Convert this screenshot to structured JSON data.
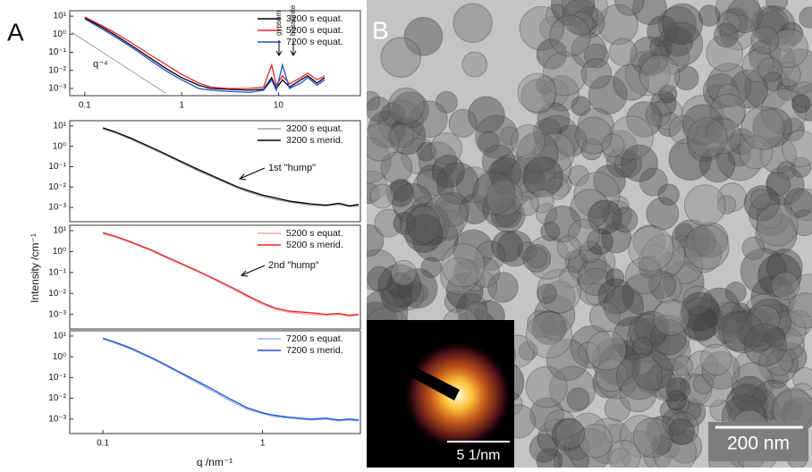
{
  "panel_labels": [
    "A",
    "B"
  ],
  "y_axis_label": "Intensity /cm⁻¹",
  "x_axis_label": "q /nm⁻¹",
  "image": {
    "scale_bar": "200 nm",
    "inset_scale_bar": "5 1/nm"
  },
  "chart_data": [
    {
      "type": "line",
      "log_x": true,
      "log_y": true,
      "x": [
        0.1,
        0.15,
        0.2,
        0.3,
        0.5,
        0.7,
        1,
        1.5,
        2,
        3,
        5,
        7,
        8.5,
        9.5,
        11,
        13,
        17,
        20,
        25,
        30
      ],
      "series": [
        {
          "name": "3200 s equat.",
          "color": "#000000",
          "values": [
            8,
            2.5,
            1,
            0.25,
            0.04,
            0.012,
            0.004,
            0.0015,
            0.001,
            0.0009,
            0.0008,
            0.0009,
            0.004,
            0.001,
            0.003,
            0.0012,
            0.003,
            0.005,
            0.002,
            0.004
          ]
        },
        {
          "name": "5200 s equat.",
          "color": "#e3262b",
          "values": [
            9,
            3,
            1.3,
            0.35,
            0.06,
            0.02,
            0.006,
            0.002,
            0.0012,
            0.001,
            0.001,
            0.0012,
            0.02,
            0.0015,
            0.005,
            0.0018,
            0.004,
            0.007,
            0.003,
            0.005
          ]
        },
        {
          "name": "7200 s equat.",
          "color": "#1f4fd6",
          "values": [
            7,
            2,
            0.8,
            0.2,
            0.03,
            0.009,
            0.003,
            0.001,
            0.0008,
            0.0007,
            0.0006,
            0.0008,
            0.003,
            0.0008,
            0.02,
            0.001,
            0.002,
            0.004,
            0.0015,
            0.003
          ]
        }
      ],
      "annotations": [
        "q⁻⁴",
        "gypsum",
        "bassanite"
      ],
      "xlim": [
        0.07,
        70
      ],
      "ylim": [
        0.0004,
        20
      ],
      "xticks": [
        0.1,
        1,
        10
      ],
      "yticks": [
        {
          "value": 10,
          "label": "10¹"
        },
        {
          "value": 1,
          "label": "10⁰"
        },
        {
          "value": 0.1,
          "label": "10⁻¹"
        },
        {
          "value": 0.01,
          "label": "10⁻²"
        },
        {
          "value": 0.001,
          "label": "10⁻³"
        }
      ]
    },
    {
      "type": "line",
      "log_x": true,
      "log_y": true,
      "x": [
        0.1,
        0.12,
        0.15,
        0.2,
        0.25,
        0.3,
        0.4,
        0.5,
        0.6,
        0.7,
        0.8,
        1,
        1.2,
        1.5,
        2,
        2.5,
        3,
        3.5,
        4
      ],
      "series": [
        {
          "name": "3200 s equat.",
          "color": "#9a9a9a",
          "values": [
            7,
            4.5,
            2.2,
            0.8,
            0.35,
            0.18,
            0.06,
            0.028,
            0.015,
            0.009,
            0.006,
            0.0035,
            0.0025,
            0.0018,
            0.0013,
            0.0012,
            0.0014,
            0.0011,
            0.0012
          ]
        },
        {
          "name": "3200 s merid.",
          "color": "#000000",
          "values": [
            8,
            5,
            2.5,
            0.9,
            0.4,
            0.2,
            0.07,
            0.032,
            0.017,
            0.01,
            0.007,
            0.004,
            0.003,
            0.002,
            0.0015,
            0.0013,
            0.0016,
            0.0012,
            0.0014
          ]
        }
      ],
      "annotations": [
        "1st \"hump\""
      ],
      "xlim": [
        0.062,
        4.1
      ],
      "ylim": [
        0.0002,
        18
      ],
      "yticks": [
        {
          "value": 10,
          "label": "10¹"
        },
        {
          "value": 1,
          "label": "10⁰"
        },
        {
          "value": 0.1,
          "label": "10⁻¹"
        },
        {
          "value": 0.01,
          "label": "10⁻²"
        },
        {
          "value": 0.001,
          "label": "10⁻³"
        }
      ]
    },
    {
      "type": "line",
      "log_x": true,
      "log_y": true,
      "x": [
        0.1,
        0.12,
        0.15,
        0.2,
        0.25,
        0.3,
        0.4,
        0.5,
        0.6,
        0.7,
        0.8,
        1,
        1.2,
        1.5,
        2,
        2.5,
        3,
        3.5,
        4
      ],
      "series": [
        {
          "name": "5200 s equat.",
          "color": "#f4a3a3",
          "values": [
            7,
            4.8,
            2.6,
            1.1,
            0.5,
            0.27,
            0.1,
            0.045,
            0.022,
            0.012,
            0.007,
            0.003,
            0.0018,
            0.0012,
            0.001,
            0.0009,
            0.001,
            0.0008,
            0.0009
          ]
        },
        {
          "name": "5200 s merid.",
          "color": "#e3262b",
          "values": [
            8,
            5.3,
            2.9,
            1.2,
            0.55,
            0.3,
            0.11,
            0.05,
            0.025,
            0.014,
            0.008,
            0.0035,
            0.002,
            0.0014,
            0.0012,
            0.001,
            0.0011,
            0.0009,
            0.001
          ]
        }
      ],
      "annotations": [
        "2nd \"hump\""
      ],
      "xlim": [
        0.062,
        4.1
      ],
      "ylim": [
        0.0002,
        18
      ],
      "yticks": [
        {
          "value": 10,
          "label": "10¹"
        },
        {
          "value": 1,
          "label": "10⁰"
        },
        {
          "value": 0.1,
          "label": "10⁻¹"
        },
        {
          "value": 0.01,
          "label": "10⁻²"
        },
        {
          "value": 0.001,
          "label": "10⁻³"
        }
      ]
    },
    {
      "type": "line",
      "log_x": true,
      "log_y": true,
      "x": [
        0.1,
        0.12,
        0.15,
        0.2,
        0.25,
        0.3,
        0.4,
        0.5,
        0.6,
        0.7,
        0.8,
        1,
        1.2,
        1.5,
        2,
        2.5,
        3,
        3.5,
        4
      ],
      "series": [
        {
          "name": "7200 s equat.",
          "color": "#92b2f0",
          "values": [
            7,
            4.5,
            2.3,
            0.85,
            0.35,
            0.17,
            0.05,
            0.02,
            0.009,
            0.005,
            0.003,
            0.0018,
            0.0013,
            0.0011,
            0.0009,
            0.001,
            0.0008,
            0.0009,
            0.0008
          ]
        },
        {
          "name": "7200 s merid.",
          "color": "#1f4fd6",
          "values": [
            8,
            5,
            2.6,
            0.95,
            0.4,
            0.19,
            0.06,
            0.024,
            0.011,
            0.006,
            0.0035,
            0.002,
            0.0015,
            0.0012,
            0.001,
            0.0011,
            0.0009,
            0.001,
            0.0009
          ]
        }
      ],
      "xlim": [
        0.062,
        4.1
      ],
      "ylim": [
        0.0002,
        18
      ],
      "xticks": [
        0.1,
        1
      ],
      "yticks": [
        {
          "value": 10,
          "label": "10¹"
        },
        {
          "value": 1,
          "label": "10⁰"
        },
        {
          "value": 0.1,
          "label": "10⁻¹"
        },
        {
          "value": 0.01,
          "label": "10⁻²"
        },
        {
          "value": 0.001,
          "label": "10⁻³"
        }
      ]
    }
  ]
}
